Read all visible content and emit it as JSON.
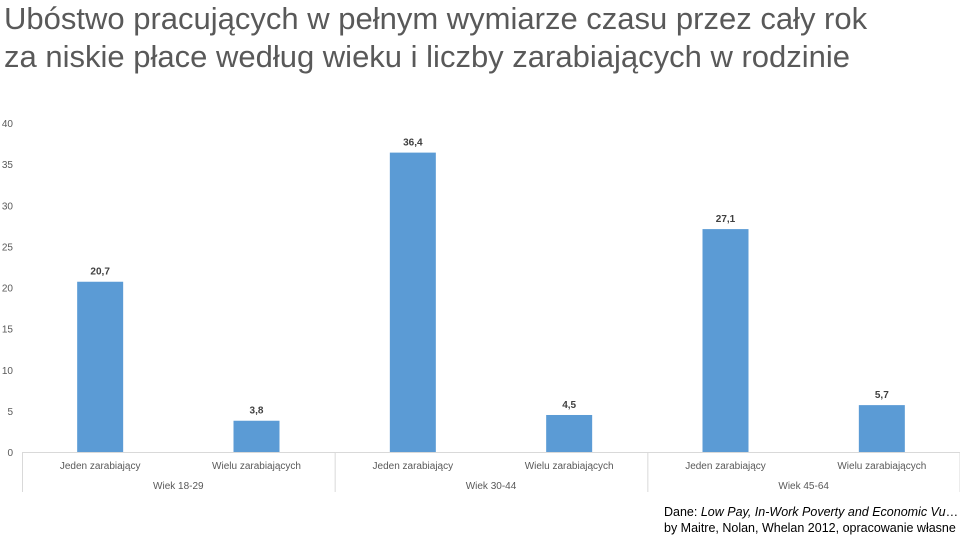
{
  "title_line1": "Ubóstwo pracujących w pełnym wymiarze czasu przez cały rok",
  "title_line2": "za niskie płace według wieku i liczby zarabiających w rodzinie",
  "source": {
    "line1_prefix": "Dane: ",
    "line1_italic": "Low Pay, In-Work Poverty and Economic Vulnerability…",
    "line2": "by Maitre, Nolan, Whelan 2012, opracowanie własne"
  },
  "colors": {
    "bar": "#5B9BD5",
    "axis": "#D9D9D9",
    "text": "#595959"
  },
  "chart_data": {
    "type": "bar",
    "title": "Ubóstwo pracujących w pełnym wymiarze czasu przez cały rok za niskie płace według wieku i liczby zarabiających w rodzinie",
    "categories": [
      {
        "label": "Jeden zarabiający",
        "group": "Wiek 18-29"
      },
      {
        "label": "Wielu zarabiających",
        "group": "Wiek 18-29"
      },
      {
        "label": "Jeden zarabiający",
        "group": "Wiek 30-44"
      },
      {
        "label": "Wielu zarabiających",
        "group": "Wiek 30-44"
      },
      {
        "label": "Jeden zarabiający",
        "group": "Wiek 45-64"
      },
      {
        "label": "Wielu zarabiających",
        "group": "Wiek 45-64"
      }
    ],
    "groups": [
      "Wiek 18-29",
      "Wiek 30-44",
      "Wiek 45-64"
    ],
    "values": [
      20.7,
      3.8,
      36.4,
      4.5,
      27.1,
      5.7
    ],
    "value_labels": [
      "20,7",
      "3,8",
      "36,4",
      "4,5",
      "27,1",
      "5,7"
    ],
    "yticks": [
      0,
      5,
      10,
      15,
      20,
      25,
      30,
      35,
      40
    ],
    "ylim": [
      0,
      40
    ],
    "grid": false,
    "legend": "none"
  }
}
